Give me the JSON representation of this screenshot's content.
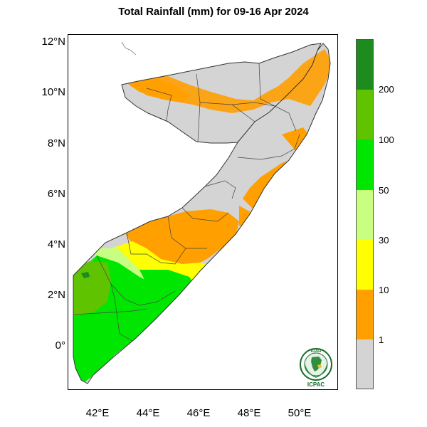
{
  "title": "Total Rainfall (mm) for 09-16 Apr 2024",
  "latitude_labels": [
    "12°N",
    "10°N",
    "8°N",
    "6°N",
    "4°N",
    "2°N",
    "0°"
  ],
  "longitude_labels": [
    "42°E",
    "44°E",
    "46°E",
    "48°E",
    "50°E"
  ],
  "legend": {
    "labels": [
      "1",
      "10",
      "30",
      "50",
      "100",
      "200"
    ],
    "colors": [
      "#d4d4d4",
      "#ff9f00",
      "#ffff00",
      "#c9ff80",
      "#00e600",
      "#60c300",
      "#1e8b1e"
    ]
  },
  "logo": {
    "top_text": "IGAD",
    "bottom_text": "ICPAC",
    "accent": "#1a6b2b"
  },
  "colors": {
    "no_rain": "#d4d4d4",
    "r1_10": "#ff9f00",
    "r10_30": "#ffff00",
    "r30_50": "#c9ff80",
    "r50_100": "#00e600",
    "r100_200": "#60c300",
    "r200_plus": "#1e8b1e"
  }
}
